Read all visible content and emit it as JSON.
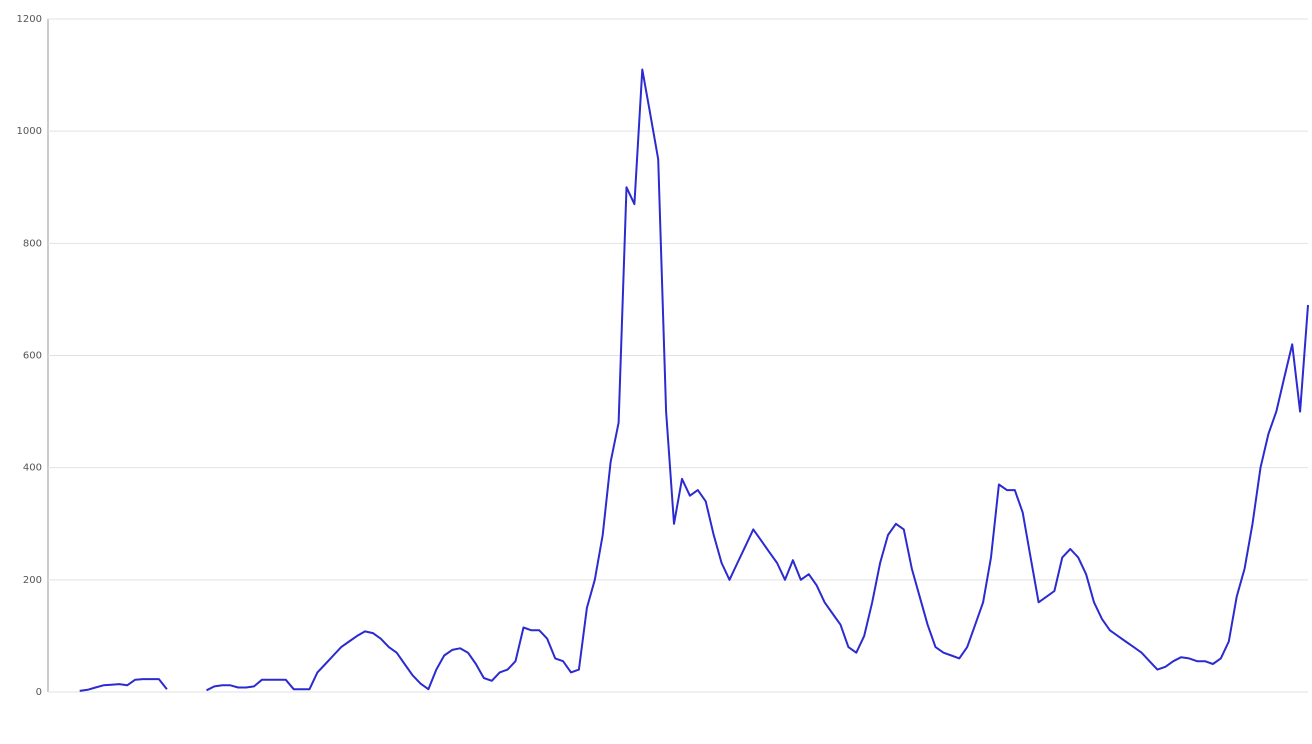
{
  "chart_data": {
    "type": "line",
    "categories": [
      null,
      null,
      null,
      null,
      null,
      null,
      null,
      null,
      null,
      null,
      null,
      null,
      null,
      null,
      null,
      null,
      null,
      null,
      null,
      null,
      null,
      null,
      null,
      null,
      null,
      null,
      null,
      null,
      null,
      null,
      null,
      null,
      null,
      null,
      null,
      null,
      null,
      null,
      null,
      null,
      null,
      null,
      null,
      null,
      null,
      null,
      null,
      null,
      null,
      null,
      null,
      null,
      null,
      null,
      null,
      null,
      null,
      null,
      null,
      null,
      null,
      null,
      null,
      null,
      null,
      null,
      null,
      null,
      null,
      null,
      null,
      null,
      null,
      null,
      null,
      null,
      null,
      null,
      null,
      null,
      null,
      null,
      null,
      null,
      null,
      null,
      null,
      null,
      null,
      null,
      null,
      null,
      null,
      null,
      null,
      null,
      null,
      null,
      null,
      null,
      null,
      null,
      null,
      null,
      null,
      null,
      null,
      null,
      null,
      null,
      null,
      null,
      null,
      null,
      null,
      null,
      null,
      null,
      null,
      null,
      null,
      null,
      null,
      null,
      null,
      null,
      null,
      null,
      null,
      null,
      null,
      null,
      null,
      null,
      null,
      null,
      null,
      null,
      null,
      null,
      null,
      null,
      null,
      null,
      null,
      null,
      null,
      null,
      null,
      null,
      null,
      null,
      null,
      null,
      null,
      null,
      null,
      null,
      null,
      null
    ],
    "series": [
      {
        "color": "#2b2bd0",
        "values": [
          null,
          null,
          null,
          null,
          2,
          4,
          8,
          12,
          13,
          14,
          12,
          22,
          23,
          23,
          23,
          5,
          null,
          null,
          null,
          null,
          3,
          10,
          12,
          12,
          8,
          8,
          10,
          22,
          22,
          22,
          22,
          5,
          5,
          5,
          35,
          50,
          65,
          80,
          90,
          100,
          108,
          105,
          95,
          80,
          70,
          50,
          30,
          15,
          5,
          40,
          65,
          75,
          78,
          70,
          50,
          25,
          20,
          35,
          40,
          55,
          115,
          110,
          110,
          95,
          60,
          55,
          35,
          40,
          150,
          200,
          280,
          410,
          480,
          900,
          870,
          1110,
          1030,
          950,
          500,
          300,
          380,
          350,
          360,
          340,
          280,
          230,
          200,
          230,
          260,
          290,
          270,
          250,
          230,
          200,
          235,
          200,
          210,
          190,
          160,
          140,
          120,
          80,
          70,
          100,
          160,
          230,
          280,
          300,
          290,
          220,
          170,
          120,
          80,
          70,
          65,
          60,
          80,
          120,
          160,
          240,
          370,
          360,
          360,
          320,
          240,
          160,
          170,
          180,
          240,
          255,
          240,
          210,
          160,
          130,
          110,
          100,
          90,
          80,
          70,
          55,
          40,
          45,
          55,
          62,
          60,
          55,
          55,
          50,
          60,
          90,
          170,
          220,
          300,
          400,
          460,
          500,
          560,
          620,
          500,
          690
        ]
      }
    ],
    "ylim": [
      0,
      1200
    ],
    "yticks": [
      0,
      200,
      400,
      600,
      800,
      1000,
      1200
    ],
    "grid": true
  }
}
